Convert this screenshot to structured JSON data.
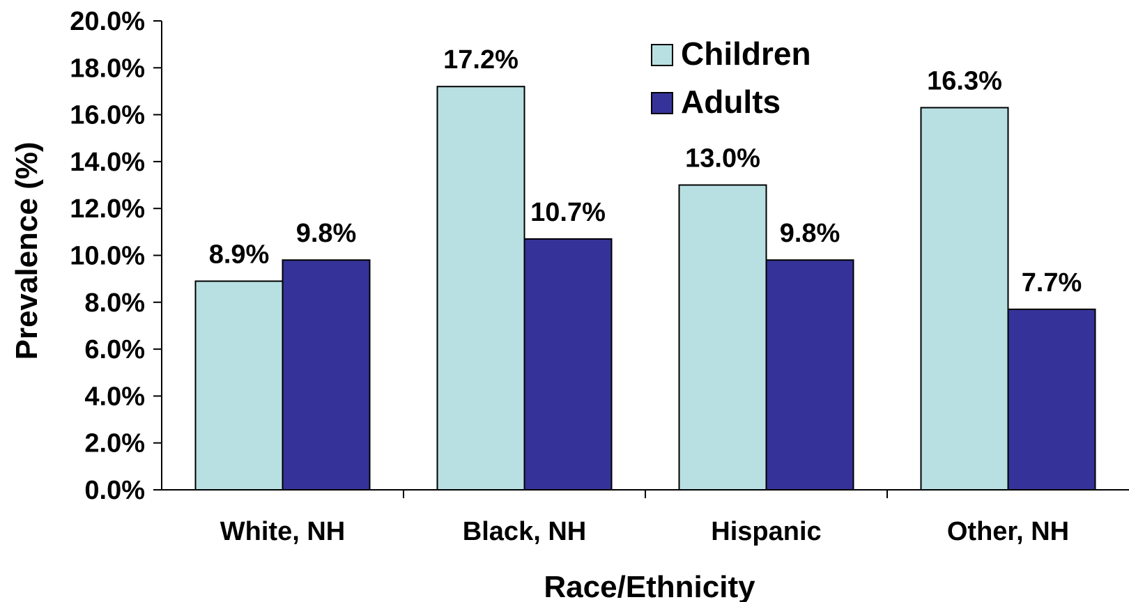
{
  "chart_data": {
    "type": "bar",
    "xlabel": "Race/Ethnicity",
    "ylabel": "Prevalence (%)",
    "ylim": [
      0,
      20
    ],
    "yticks": [
      0,
      2,
      4,
      6,
      8,
      10,
      12,
      14,
      16,
      18,
      20
    ],
    "ytick_labels": [
      "0.0%",
      "2.0%",
      "4.0%",
      "6.0%",
      "8.0%",
      "10.0%",
      "12.0%",
      "14.0%",
      "16.0%",
      "18.0%",
      "20.0%"
    ],
    "categories": [
      "White, NH",
      "Black, NH",
      "Hispanic",
      "Other, NH"
    ],
    "series": [
      {
        "name": "Children",
        "color": "#B8E0E2",
        "values": [
          8.9,
          17.2,
          13.0,
          16.3
        ],
        "labels": [
          "8.9%",
          "17.2%",
          "13.0%",
          "16.3%"
        ]
      },
      {
        "name": "Adults",
        "color": "#353399",
        "values": [
          9.8,
          10.7,
          9.8,
          7.7
        ],
        "labels": [
          "9.8%",
          "10.7%",
          "9.8%",
          "7.7%"
        ]
      }
    ],
    "legend_position": "top-right",
    "grid": false
  }
}
